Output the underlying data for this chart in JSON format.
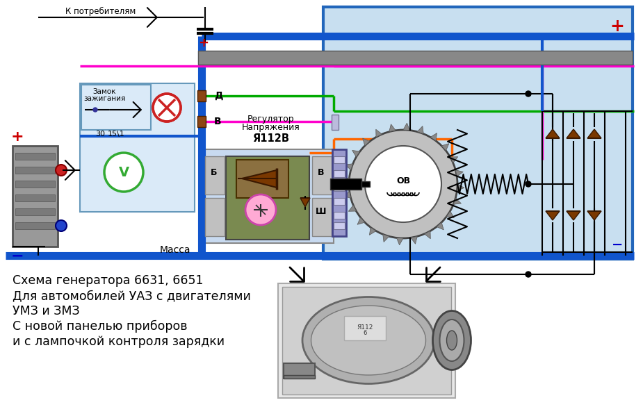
{
  "bg_color": "#ffffff",
  "light_blue": "#c8dff0",
  "caption_lines": [
    "Схема генератора 6631, 6651",
    "Для автомобилей УАЗ с двигателями",
    "УМЗ и ЗМЗ",
    "С новой панелью приборов",
    "и с лампочкой контроля зарядки"
  ],
  "caption_fontsize": 12.5
}
